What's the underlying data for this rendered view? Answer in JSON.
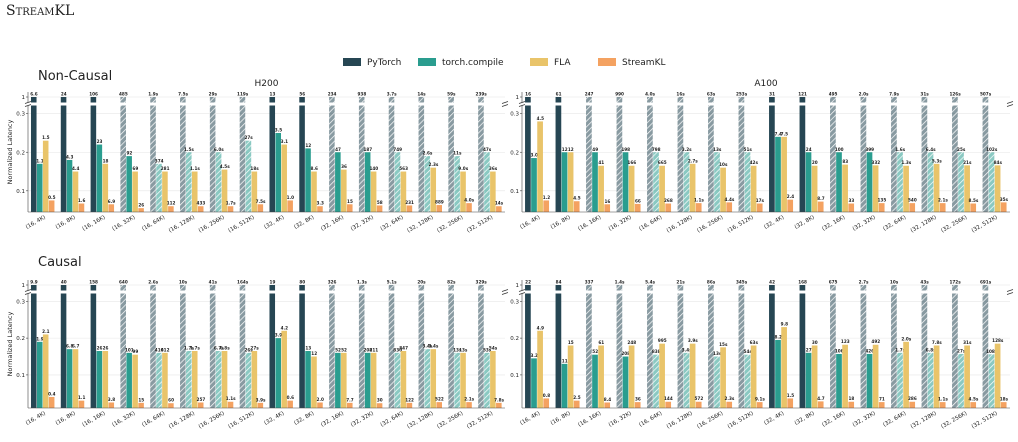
{
  "title": "StreamKL",
  "row_labels": [
    "Non-Causal",
    "Causal"
  ],
  "legend": [
    {
      "name": "PyTorch",
      "color": "#264653"
    },
    {
      "name": "torch.compile",
      "color": "#2a9d8f"
    },
    {
      "name": "FLA",
      "color": "#e9c46a"
    },
    {
      "name": "StreamKL",
      "color": "#f4a261"
    }
  ],
  "chart_data": [
    {
      "type": "bar",
      "title": "H200",
      "ylabel": "Normalized Latency",
      "categories": [
        "(16, 4K)",
        "(16, 8K)",
        "(16, 16K)",
        "(16, 32K)",
        "(16, 64K)",
        "(16, 128K)",
        "(16, 256K)",
        "(16, 512K)",
        "(32, 4K)",
        "(32, 8K)",
        "(32, 16K)",
        "(32, 32K)",
        "(32, 64K)",
        "(32, 128K)",
        "(32, 256K)",
        "(32, 512K)"
      ],
      "ylim": [
        0.045,
        1.05
      ],
      "axis_break": [
        0.32,
        0.95
      ],
      "yticks": [
        0.1,
        0.2,
        0.3,
        1
      ],
      "grid": true,
      "series": [
        {
          "values": [
            1,
            1,
            1,
            1,
            1,
            1,
            1,
            1,
            1,
            1,
            1,
            1,
            1,
            1,
            1,
            1
          ],
          "latency_labels": [
            "6.6",
            "24",
            "106",
            "485",
            "1.9s",
            "7.5s",
            "29s",
            "119s",
            "13",
            "56",
            "234",
            "938",
            "3.7s",
            "14s",
            "59s",
            "239s"
          ],
          "hatched": [
            false,
            false,
            false,
            true,
            true,
            true,
            true,
            true,
            false,
            false,
            true,
            true,
            true,
            true,
            true,
            true
          ]
        },
        {
          "values": [
            0.17,
            0.18,
            0.22,
            0.19,
            0.17,
            0.2,
            0.2,
            0.23,
            0.25,
            0.21,
            0.2,
            0.2,
            0.2,
            0.19,
            0.19,
            0.2
          ],
          "latency_labels": [
            "1.1",
            "4.3",
            "23",
            "92",
            "374",
            "1.5s",
            "6.0s",
            "27s",
            "3.5",
            "12",
            "47",
            "187",
            "749",
            "2.6s",
            "11s",
            "47s"
          ],
          "hatched": [
            false,
            false,
            false,
            false,
            true,
            true,
            true,
            true,
            false,
            false,
            false,
            false,
            true,
            true,
            true,
            true
          ]
        },
        {
          "values": [
            0.23,
            0.15,
            0.17,
            0.15,
            0.15,
            0.15,
            0.155,
            0.15,
            0.22,
            0.15,
            0.155,
            0.15,
            0.15,
            0.16,
            0.15,
            0.15
          ],
          "latency_labels": [
            "1.5",
            "4.4",
            "18",
            "69",
            "281",
            "1.1s",
            "4.5s",
            "18s",
            "3.1",
            "8.6",
            "36",
            "140",
            "563",
            "2.3s",
            "9.0s",
            "36s"
          ],
          "hatched": [
            false,
            false,
            false,
            false,
            false,
            false,
            false,
            false,
            false,
            false,
            false,
            false,
            false,
            false,
            false,
            false
          ]
        },
        {
          "values": [
            0.075,
            0.067,
            0.065,
            0.055,
            0.06,
            0.06,
            0.06,
            0.065,
            0.075,
            0.06,
            0.065,
            0.062,
            0.062,
            0.063,
            0.068,
            0.06
          ],
          "latency_labels": [
            "0.5",
            "1.6",
            "6.9",
            "26",
            "112",
            "433",
            "1.7s",
            "7.5s",
            "1.0",
            "3.3",
            "15",
            "58",
            "231",
            "889",
            "4.0s",
            "14s"
          ],
          "hatched": [
            false,
            false,
            false,
            false,
            false,
            false,
            false,
            false,
            false,
            false,
            false,
            false,
            false,
            false,
            false,
            false
          ]
        }
      ]
    },
    {
      "type": "bar",
      "title": "A100",
      "categories": [
        "(16, 4K)",
        "(16, 8K)",
        "(16, 16K)",
        "(16, 32K)",
        "(16, 64K)",
        "(16, 128K)",
        "(16, 256K)",
        "(16, 512K)",
        "(32, 4K)",
        "(32, 8K)",
        "(32, 16K)",
        "(32, 32K)",
        "(32, 64K)",
        "(32, 128K)",
        "(32, 256K)",
        "(32, 512K)"
      ],
      "ylim": [
        0.045,
        1.05
      ],
      "axis_break": [
        0.32,
        0.95
      ],
      "yticks": [
        0.1,
        0.2,
        0.3,
        1
      ],
      "grid": true,
      "series": [
        {
          "values": [
            1,
            1,
            1,
            1,
            1,
            1,
            1,
            1,
            1,
            1,
            1,
            1,
            1,
            1,
            1,
            1
          ],
          "latency_labels": [
            "16",
            "61",
            "247",
            "990",
            "4.0s",
            "16s",
            "63s",
            "253s",
            "31",
            "121",
            "495",
            "2.0s",
            "7.9s",
            "31s",
            "126s",
            "507s"
          ],
          "hatched": [
            false,
            false,
            true,
            true,
            true,
            true,
            true,
            true,
            false,
            false,
            true,
            true,
            true,
            true,
            true,
            true
          ]
        },
        {
          "values": [
            0.185,
            0.2,
            0.2,
            0.2,
            0.2,
            0.2,
            0.2,
            0.2,
            0.24,
            0.2,
            0.2,
            0.2,
            0.2,
            0.2,
            0.2,
            0.2
          ],
          "latency_labels": [
            "3.0",
            "12",
            "49",
            "198",
            "798",
            "3.2s",
            "13s",
            "51s",
            "7.4",
            "24",
            "100",
            "399",
            "1.6s",
            "6.4s",
            "25s",
            "102s"
          ],
          "hatched": [
            false,
            false,
            false,
            false,
            true,
            true,
            true,
            true,
            false,
            false,
            false,
            false,
            true,
            true,
            true,
            true
          ]
        },
        {
          "values": [
            0.28,
            0.2,
            0.165,
            0.165,
            0.165,
            0.17,
            0.16,
            0.165,
            0.24,
            0.165,
            0.168,
            0.166,
            0.165,
            0.17,
            0.166,
            0.166
          ],
          "latency_labels": [
            "4.5",
            "12",
            "41",
            "166",
            "665",
            "2.7s",
            "10s",
            "42s",
            "7.5",
            "20",
            "83",
            "332",
            "1.3s",
            "5.3s",
            "21s",
            "84s"
          ],
          "hatched": [
            false,
            false,
            false,
            false,
            false,
            false,
            false,
            false,
            false,
            false,
            false,
            false,
            false,
            false,
            false,
            false
          ]
        },
        {
          "values": [
            0.075,
            0.073,
            0.065,
            0.066,
            0.067,
            0.068,
            0.07,
            0.067,
            0.077,
            0.072,
            0.067,
            0.068,
            0.068,
            0.068,
            0.067,
            0.07
          ],
          "latency_labels": [
            "1.2",
            "4.5",
            "16",
            "66",
            "268",
            "1.1s",
            "4.4s",
            "17s",
            "2.4",
            "8.7",
            "33",
            "135",
            "540",
            "2.1s",
            "8.5s",
            "35s"
          ],
          "hatched": [
            false,
            false,
            false,
            false,
            false,
            false,
            false,
            false,
            false,
            false,
            false,
            false,
            false,
            false,
            false,
            false
          ]
        }
      ]
    },
    {
      "type": "bar",
      "ylabel": "Normalized Latency",
      "categories": [
        "(16, 4K)",
        "(16, 8K)",
        "(16, 16K)",
        "(16, 32K)",
        "(16, 64K)",
        "(16, 128K)",
        "(16, 256K)",
        "(16, 512K)",
        "(32, 4K)",
        "(32, 8K)",
        "(32, 16K)",
        "(32, 32K)",
        "(32, 64K)",
        "(32, 128K)",
        "(32, 256K)",
        "(32, 512K)"
      ],
      "ylim": [
        0.01,
        1.05
      ],
      "axis_break": [
        0.32,
        0.95
      ],
      "yticks": [
        0.1,
        0.2,
        0.3,
        1
      ],
      "grid": true,
      "series": [
        {
          "values": [
            1,
            1,
            1,
            1,
            1,
            1,
            1,
            1,
            1,
            1,
            1,
            1,
            1,
            1,
            1,
            1
          ],
          "latency_labels": [
            "9.9",
            "40",
            "158",
            "640",
            "2.6s",
            "10s",
            "41s",
            "164s",
            "19",
            "80",
            "326",
            "1.3s",
            "5.1s",
            "20s",
            "82s",
            "329s"
          ],
          "hatched": [
            false,
            false,
            false,
            true,
            true,
            true,
            true,
            true,
            false,
            false,
            true,
            true,
            true,
            true,
            true,
            true
          ]
        },
        {
          "values": [
            0.19,
            0.17,
            0.165,
            0.16,
            0.16,
            0.165,
            0.165,
            0.16,
            0.2,
            0.165,
            0.16,
            0.16,
            0.16,
            0.17,
            0.16,
            0.16
          ],
          "latency_labels": [
            "1.9",
            "6.8",
            "26",
            "101",
            "410",
            "1.7s",
            "6.7s",
            "26s",
            "3.9",
            "13",
            "52",
            "208",
            "830",
            "3.4s",
            "13s",
            "53s"
          ],
          "hatched": [
            false,
            false,
            false,
            false,
            true,
            true,
            true,
            true,
            false,
            false,
            false,
            false,
            true,
            true,
            true,
            true
          ]
        },
        {
          "values": [
            0.21,
            0.17,
            0.165,
            0.155,
            0.16,
            0.165,
            0.165,
            0.165,
            0.22,
            0.15,
            0.16,
            0.16,
            0.165,
            0.17,
            0.16,
            0.165
          ],
          "latency_labels": [
            "2.1",
            "6.7",
            "26",
            "99",
            "412",
            "1.7s",
            "6.8s",
            "27s",
            "4.2",
            "12",
            "52",
            "211",
            "847",
            "3.4s",
            "13s",
            "54s"
          ],
          "hatched": [
            false,
            false,
            false,
            false,
            false,
            false,
            false,
            false,
            false,
            false,
            false,
            false,
            false,
            false,
            false,
            false
          ]
        },
        {
          "values": [
            0.04,
            0.03,
            0.025,
            0.024,
            0.023,
            0.025,
            0.027,
            0.024,
            0.03,
            0.025,
            0.024,
            0.023,
            0.024,
            0.026,
            0.026,
            0.024
          ],
          "latency_labels": [
            "0.4",
            "1.1",
            "3.8",
            "15",
            "60",
            "257",
            "1.1s",
            "3.9s",
            "0.6",
            "2.0",
            "7.7",
            "30",
            "122",
            "522",
            "2.1s",
            "7.8s"
          ],
          "hatched": [
            false,
            false,
            false,
            false,
            false,
            false,
            false,
            false,
            false,
            false,
            false,
            false,
            false,
            false,
            false,
            false
          ]
        }
      ]
    },
    {
      "type": "bar",
      "categories": [
        "(16, 4K)",
        "(16, 8K)",
        "(16, 16K)",
        "(16, 32K)",
        "(16, 64K)",
        "(16, 128K)",
        "(16, 256K)",
        "(16, 512K)",
        "(32, 4K)",
        "(32, 8K)",
        "(32, 16K)",
        "(32, 32K)",
        "(32, 64K)",
        "(32, 128K)",
        "(32, 256K)",
        "(32, 512K)"
      ],
      "ylim": [
        0.01,
        1.05
      ],
      "axis_break": [
        0.32,
        0.95
      ],
      "yticks": [
        0.1,
        0.2,
        0.3,
        1
      ],
      "grid": true,
      "series": [
        {
          "values": [
            1,
            1,
            1,
            1,
            1,
            1,
            1,
            1,
            1,
            1,
            1,
            1,
            1,
            1,
            1,
            1
          ],
          "latency_labels": [
            "22",
            "84",
            "337",
            "1.4s",
            "5.4s",
            "21s",
            "86s",
            "345s",
            "42",
            "168",
            "675",
            "2.7s",
            "10s",
            "43s",
            "172s",
            "691s"
          ],
          "hatched": [
            false,
            false,
            true,
            true,
            true,
            true,
            true,
            true,
            false,
            false,
            true,
            true,
            true,
            true,
            true,
            true
          ]
        },
        {
          "values": [
            0.145,
            0.13,
            0.155,
            0.15,
            0.155,
            0.16,
            0.15,
            0.155,
            0.195,
            0.16,
            0.157,
            0.157,
            0.16,
            0.16,
            0.157,
            0.156
          ],
          "latency_labels": [
            "3.2",
            "11",
            "52",
            "208",
            "838",
            "3.4s",
            "13s",
            "54s",
            "8.2",
            "27",
            "106",
            "426",
            "1.7s",
            "6.8s",
            "27s",
            "108s"
          ],
          "hatched": [
            false,
            false,
            false,
            false,
            true,
            true,
            true,
            true,
            false,
            false,
            false,
            false,
            true,
            true,
            true,
            true
          ]
        },
        {
          "values": [
            0.22,
            0.18,
            0.18,
            0.18,
            0.185,
            0.185,
            0.175,
            0.18,
            0.23,
            0.18,
            0.182,
            0.182,
            0.19,
            0.18,
            0.18,
            0.185
          ],
          "latency_labels": [
            "4.9",
            "15",
            "61",
            "248",
            "995",
            "3.9s",
            "15s",
            "63s",
            "9.8",
            "30",
            "123",
            "492",
            "2.0s",
            "7.8s",
            "31s",
            "128s"
          ],
          "hatched": [
            false,
            false,
            false,
            false,
            false,
            false,
            false,
            false,
            false,
            false,
            false,
            false,
            false,
            false,
            false,
            false
          ]
        },
        {
          "values": [
            0.036,
            0.03,
            0.025,
            0.026,
            0.027,
            0.027,
            0.027,
            0.026,
            0.036,
            0.028,
            0.027,
            0.026,
            0.027,
            0.026,
            0.026,
            0.026
          ],
          "latency_labels": [
            "0.8",
            "2.5",
            "8.4",
            "36",
            "144",
            "572",
            "2.3s",
            "9.1s",
            "1.5",
            "4.7",
            "18",
            "71",
            "286",
            "1.1s",
            "4.5s",
            "18s"
          ],
          "hatched": [
            false,
            false,
            false,
            false,
            false,
            false,
            false,
            false,
            false,
            false,
            false,
            false,
            false,
            false,
            false,
            false
          ]
        }
      ]
    }
  ]
}
